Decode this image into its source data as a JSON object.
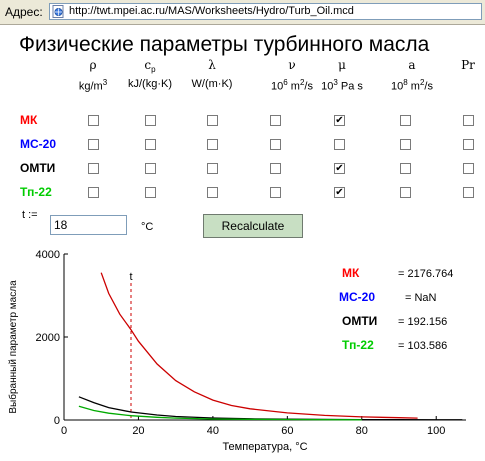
{
  "address_bar": {
    "label": "Адрес:",
    "url": "http://twt.mpei.ac.ru/MAS/Worksheets/Hydro/Turb_Oil.mcd"
  },
  "title": "Физические параметры турбинного масла",
  "columns": [
    {
      "symbol": "ρ",
      "unit_a": "kg/m",
      "unit_sup": "3",
      "unit_b": ""
    },
    {
      "symbol": "c",
      "symbol_sub": "p",
      "unit_a": "kJ/(kg·K)",
      "unit_sup": "",
      "unit_b": ""
    },
    {
      "symbol": "λ",
      "unit_a": "W/(m·K)",
      "unit_sup": "",
      "unit_b": ""
    },
    {
      "symbol": "ν",
      "pre": "10",
      "pre_sup": "6",
      "unit_a": " m",
      "unit_sup": "2",
      "unit_b": "/s"
    },
    {
      "symbol": "μ",
      "pre": "10",
      "pre_sup": "3",
      "unit_a": " Pa s",
      "unit_sup": "",
      "unit_b": ""
    },
    {
      "symbol": "a",
      "pre": "10",
      "pre_sup": "8",
      "unit_a": " m",
      "unit_sup": "2",
      "unit_b": "/s"
    },
    {
      "symbol": "Pr",
      "unit_a": "",
      "unit_sup": "",
      "unit_b": ""
    }
  ],
  "rows": [
    {
      "label": "МК",
      "color": "#ff0000",
      "checked": [
        false,
        false,
        false,
        false,
        true,
        false,
        false
      ]
    },
    {
      "label": "МС-20",
      "color": "#0000ff",
      "checked": [
        false,
        false,
        false,
        false,
        false,
        false,
        false
      ]
    },
    {
      "label": "ОМТИ",
      "color": "#000000",
      "checked": [
        false,
        false,
        false,
        false,
        true,
        false,
        false
      ]
    },
    {
      "label": "Тп-22",
      "color": "#00cc00",
      "checked": [
        false,
        false,
        false,
        false,
        true,
        false,
        false
      ]
    }
  ],
  "t_label": "t :=",
  "t_value": "18",
  "t_unit": "°C",
  "recalculate_label": "Recalculate",
  "chart_data": {
    "type": "line",
    "title": "",
    "xlabel": "Температура, °C",
    "ylabel": "Выбранный параметр масла",
    "xlim": [
      0,
      108
    ],
    "ylim": [
      0,
      4000
    ],
    "x_ticks": [
      0,
      20,
      40,
      60,
      80,
      100
    ],
    "y_ticks": [
      0,
      2000,
      4000
    ],
    "marker": {
      "label": "t",
      "x": 18
    },
    "series": [
      {
        "name": "МК",
        "color": "#cc0000",
        "x": [
          10,
          12,
          15,
          18,
          20,
          25,
          30,
          35,
          40,
          45,
          50,
          60,
          70,
          80,
          90,
          95
        ],
        "y": [
          3550,
          3050,
          2550,
          2177,
          1900,
          1350,
          950,
          680,
          480,
          350,
          270,
          170,
          110,
          75,
          55,
          45
        ]
      },
      {
        "name": "ОМТИ",
        "color": "#000000",
        "x": [
          4,
          8,
          12,
          18,
          25,
          30,
          40,
          50,
          60,
          70,
          80,
          90,
          100,
          107
        ],
        "y": [
          560,
          420,
          300,
          192,
          120,
          85,
          48,
          30,
          20,
          14,
          10,
          8,
          6,
          5
        ]
      },
      {
        "name": "Тп-22",
        "color": "#00aa00",
        "x": [
          4,
          8,
          12,
          18,
          25,
          30,
          40,
          50,
          60,
          70,
          80
        ],
        "y": [
          330,
          230,
          165,
          104,
          65,
          45,
          25,
          16,
          11,
          8,
          6
        ]
      }
    ],
    "readouts": [
      {
        "name": "МК",
        "color": "#ff0000",
        "value": "= 2176.764"
      },
      {
        "name": "МС-20",
        "color": "#0000ff",
        "value": "= NaN"
      },
      {
        "name": "ОМТИ",
        "color": "#000000",
        "value": "= 192.156"
      },
      {
        "name": "Тп-22",
        "color": "#00cc00",
        "value": "= 103.586"
      }
    ]
  }
}
